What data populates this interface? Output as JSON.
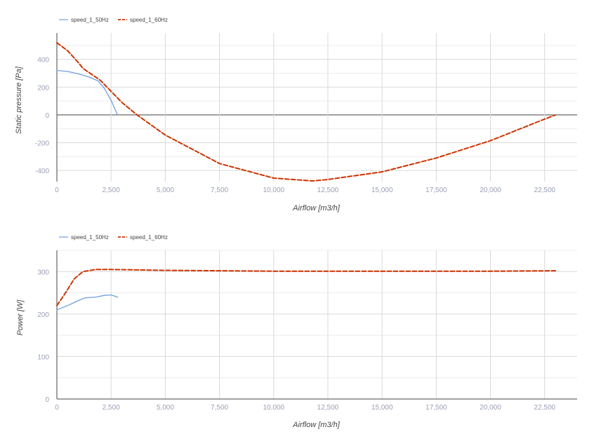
{
  "chart_data": [
    {
      "type": "line",
      "title": "",
      "xlabel": "Airflow [m3/h]",
      "ylabel": "Static pressure [Pa]",
      "xlim": [
        0,
        24000
      ],
      "ylim": [
        -480,
        590
      ],
      "x_ticks": [
        0,
        2500,
        5000,
        7500,
        10000,
        12500,
        15000,
        17500,
        20000,
        22500
      ],
      "x_tick_labels": [
        "0",
        "2,500",
        "5,000",
        "7,500",
        "10,000",
        "12,500",
        "15,000",
        "17,500",
        "20,000",
        "22,500"
      ],
      "y_ticks": [
        -400,
        -200,
        0,
        200,
        400
      ],
      "y_tick_labels": [
        "-400",
        "-200",
        "0",
        "200",
        "400"
      ],
      "grid": true,
      "legend_position": "top-left",
      "series": [
        {
          "name": "speed_1_50Hz",
          "color": "#6f9ee0",
          "dash": "solid",
          "points": [
            [
              0,
              320
            ],
            [
              500,
              313
            ],
            [
              1000,
              295
            ],
            [
              1500,
              272
            ],
            [
              1900,
              245
            ],
            [
              2200,
              190
            ],
            [
              2500,
              105
            ],
            [
              2800,
              0
            ]
          ]
        },
        {
          "name": "speed_1_60Hz",
          "color": "#cc3300",
          "dash": "dashed",
          "points": [
            [
              0,
              520
            ],
            [
              500,
              462
            ],
            [
              1000,
              375
            ],
            [
              1200,
              335
            ],
            [
              2000,
              250
            ],
            [
              3000,
              90
            ],
            [
              3700,
              0
            ],
            [
              5000,
              -145
            ],
            [
              7500,
              -350
            ],
            [
              10000,
              -455
            ],
            [
              11800,
              -475
            ],
            [
              12500,
              -465
            ],
            [
              15000,
              -410
            ],
            [
              17500,
              -310
            ],
            [
              20000,
              -185
            ],
            [
              22500,
              -30
            ],
            [
              23000,
              0
            ]
          ]
        }
      ]
    },
    {
      "type": "line",
      "title": "",
      "xlabel": "Airflow [m3/h]",
      "ylabel": "Power [W]",
      "xlim": [
        0,
        24000
      ],
      "ylim": [
        0,
        350
      ],
      "x_ticks": [
        0,
        2500,
        5000,
        7500,
        10000,
        12500,
        15000,
        17500,
        20000,
        22500
      ],
      "x_tick_labels": [
        "0",
        "2,500",
        "5,000",
        "7,500",
        "10,000",
        "12,500",
        "15,000",
        "17,500",
        "20,000",
        "22,500"
      ],
      "y_ticks": [
        0,
        100,
        200,
        300
      ],
      "y_tick_labels": [
        "0",
        "100",
        "200",
        "300"
      ],
      "grid": true,
      "legend_position": "top-left",
      "series": [
        {
          "name": "speed_1_50Hz",
          "color": "#6f9ee0",
          "dash": "solid",
          "points": [
            [
              0,
              210
            ],
            [
              500,
              220
            ],
            [
              1000,
              232
            ],
            [
              1300,
              238
            ],
            [
              1800,
              240
            ],
            [
              2200,
              244
            ],
            [
              2500,
              245
            ],
            [
              2800,
              240
            ]
          ]
        },
        {
          "name": "speed_1_60Hz",
          "color": "#cc3300",
          "dash": "dashed",
          "points": [
            [
              0,
              220
            ],
            [
              400,
              250
            ],
            [
              800,
              283
            ],
            [
              1200,
              300
            ],
            [
              1800,
              305
            ],
            [
              2500,
              305
            ],
            [
              5000,
              303
            ],
            [
              10000,
              301
            ],
            [
              15000,
              301
            ],
            [
              20000,
              301
            ],
            [
              23000,
              302
            ]
          ]
        }
      ]
    }
  ]
}
